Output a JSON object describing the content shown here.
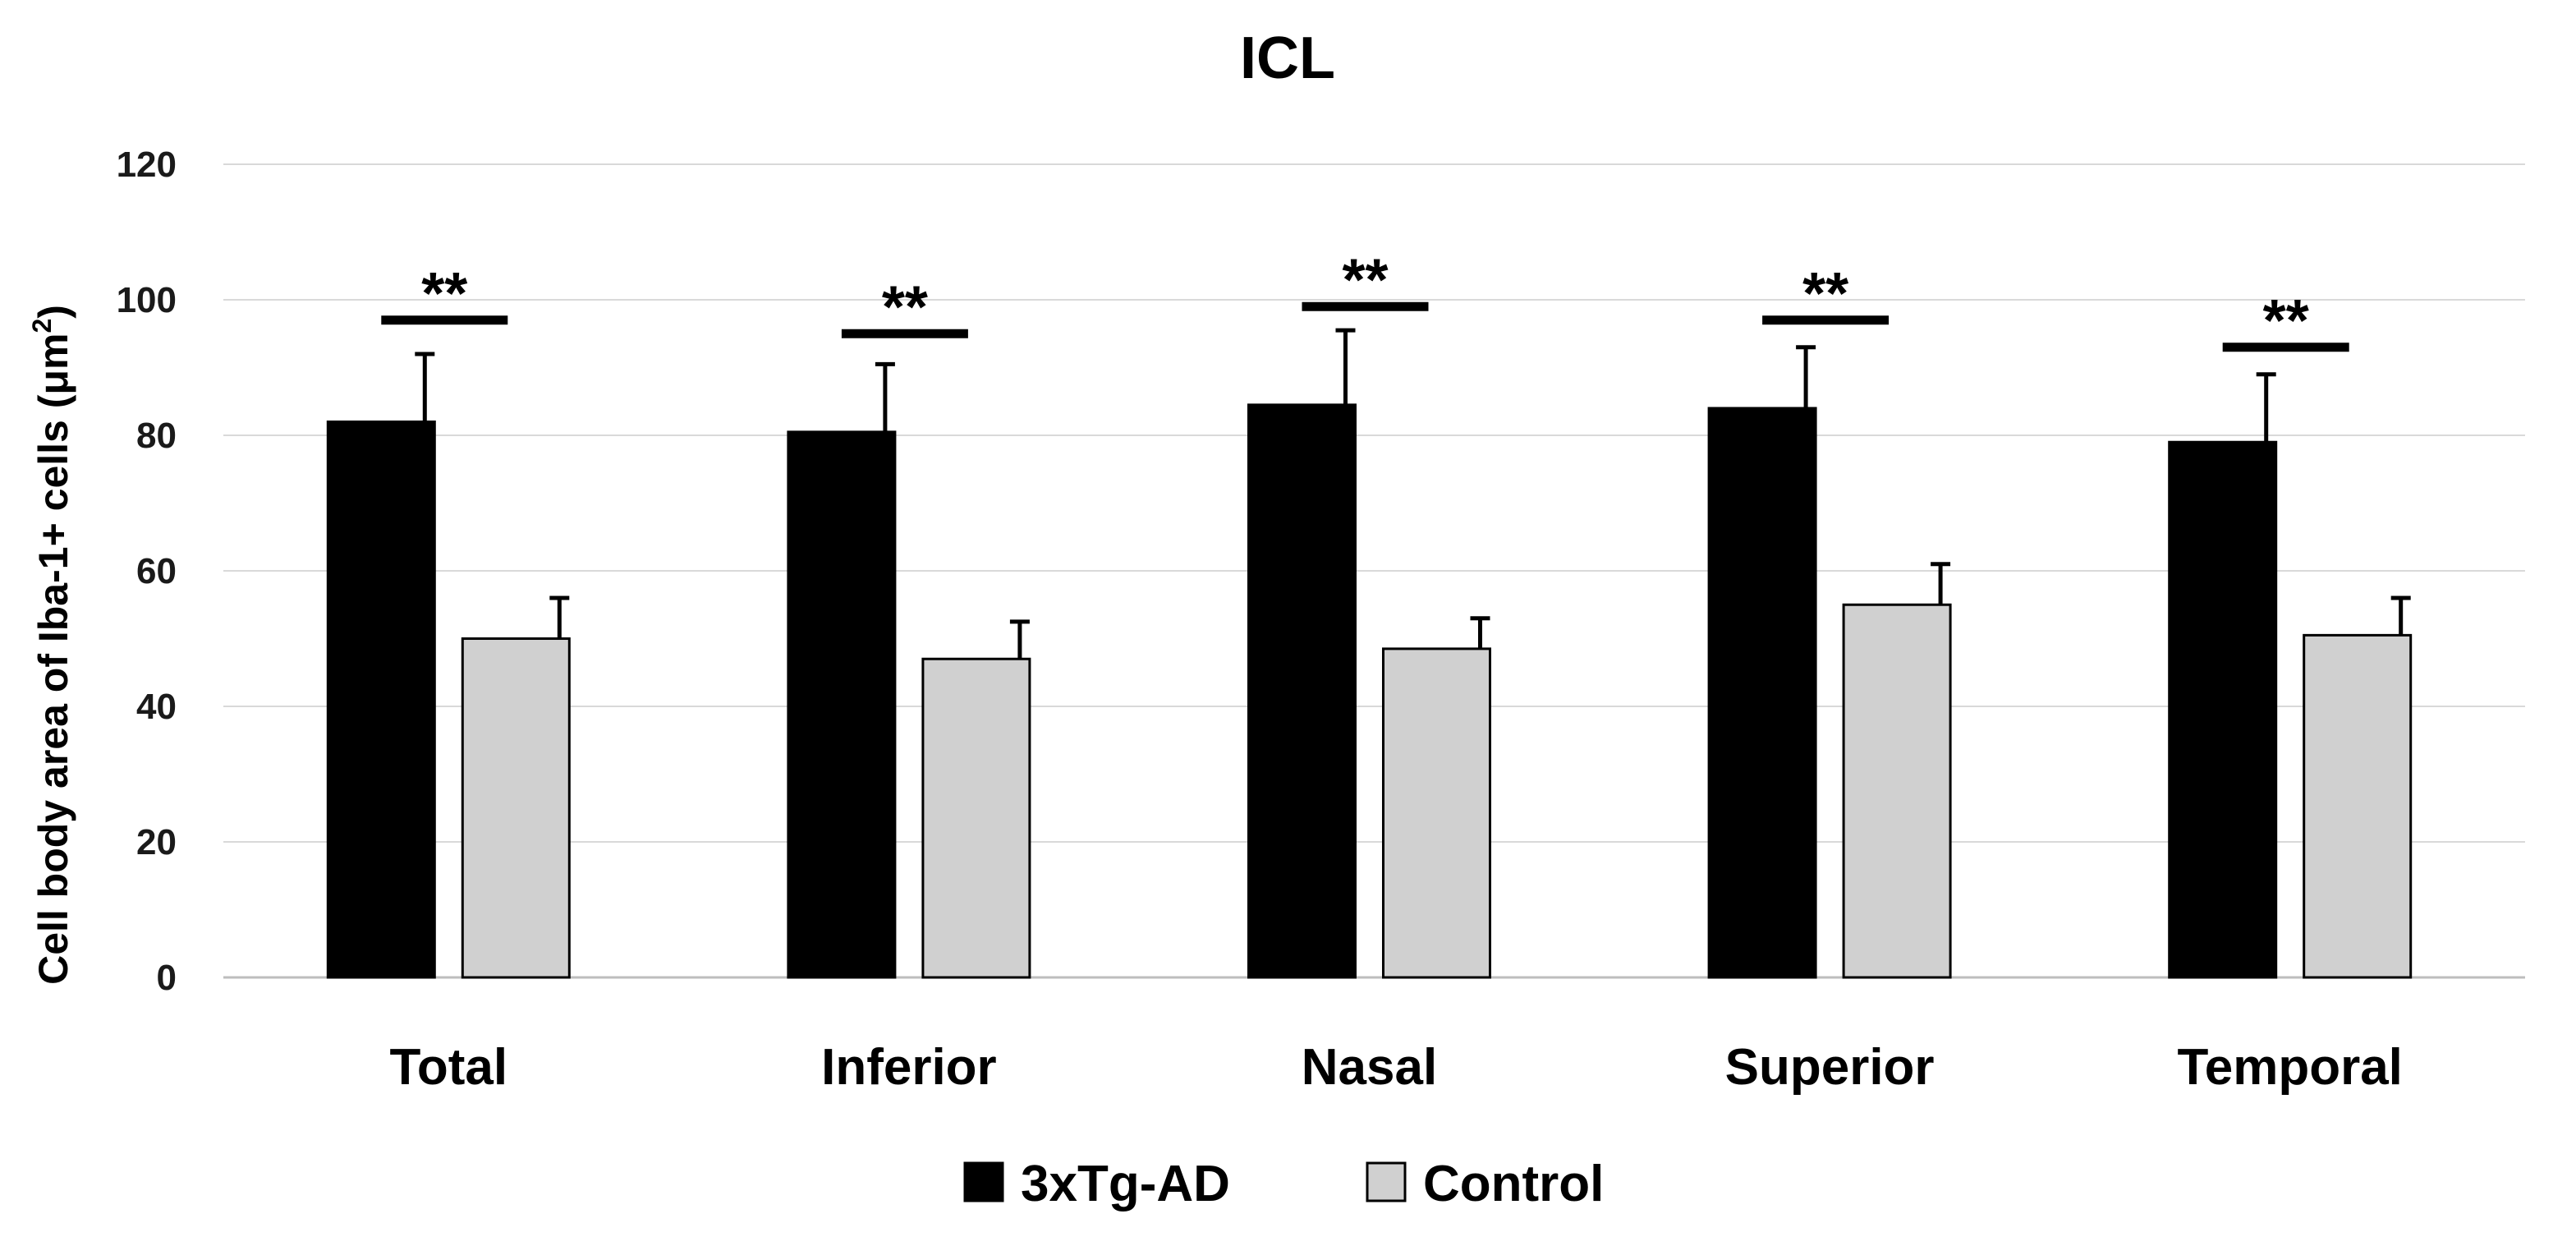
{
  "chart_data": {
    "type": "bar",
    "title": "ICL",
    "ylabel_main": "Cell body area of Iba-1+ cells (μm",
    "ylabel_sup": "2",
    "ylabel_close": ")",
    "ylim": [
      0,
      120
    ],
    "yticks": [
      0,
      20,
      40,
      60,
      80,
      100,
      120
    ],
    "grid": true,
    "categories": [
      "Total",
      "Inferior",
      "Nasal",
      "Superior",
      "Temporal"
    ],
    "series": [
      {
        "name": "3xTg-AD",
        "color": "#000000",
        "values": [
          82,
          80.5,
          84.5,
          84,
          79
        ],
        "errors": [
          10,
          10,
          11,
          9,
          10
        ]
      },
      {
        "name": "Control",
        "color": "#d0d0d0",
        "values": [
          50,
          47,
          48.5,
          55,
          50.5
        ],
        "errors": [
          6,
          5.5,
          4.5,
          6,
          5.5
        ]
      }
    ],
    "significance": [
      {
        "label": "**",
        "level": 97
      },
      {
        "label": "**",
        "level": 95
      },
      {
        "label": "**",
        "level": 99
      },
      {
        "label": "**",
        "level": 97
      },
      {
        "label": "**",
        "level": 93
      }
    ],
    "legend_position": "bottom"
  }
}
